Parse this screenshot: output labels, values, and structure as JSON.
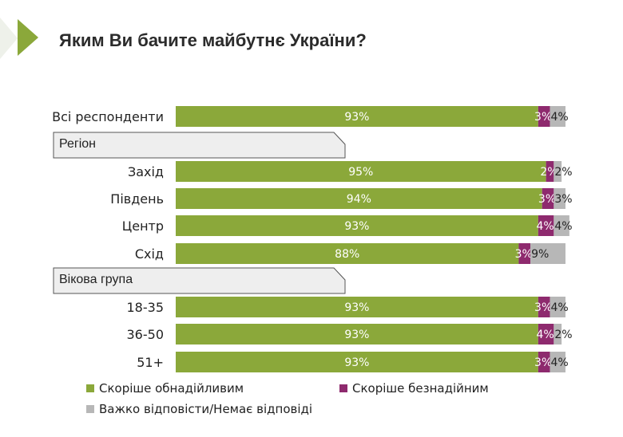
{
  "title": "Яким Ви бачите майбутнє України?",
  "groups": [
    {
      "label": "Регіон"
    },
    {
      "label": "Вікова група"
    }
  ],
  "colors": {
    "hopeful": "#8ba83a",
    "hopeless": "#8e2a6e",
    "hard": "#b7b7b7",
    "accent": "#8ba83a"
  },
  "legend": {
    "hopeful": "Скоріше обнадійливим",
    "hopeless": "Скоріше безнадійним",
    "hard": "Важко відповісти/Немає відповіді"
  },
  "chart_data": {
    "type": "bar",
    "orientation": "horizontal",
    "stacked": true,
    "title": "Яким Ви бачите майбутнє України?",
    "categories": [
      "Всі респонденти",
      "Захід",
      "Південь",
      "Центр",
      "Схід",
      "18-35",
      "36-50",
      "51+"
    ],
    "series": [
      {
        "name": "Скоріше обнадійливим",
        "values": [
          93,
          95,
          94,
          93,
          88,
          93,
          93,
          93
        ]
      },
      {
        "name": "Скоріше безнадійним",
        "values": [
          3,
          2,
          3,
          4,
          3,
          3,
          4,
          3
        ]
      },
      {
        "name": "Важко відповісти/Немає відповіді",
        "values": [
          4,
          2,
          3,
          4,
          9,
          4,
          2,
          4
        ]
      }
    ],
    "xlim": [
      0,
      100
    ],
    "grid": false,
    "legend_position": "bottom"
  }
}
